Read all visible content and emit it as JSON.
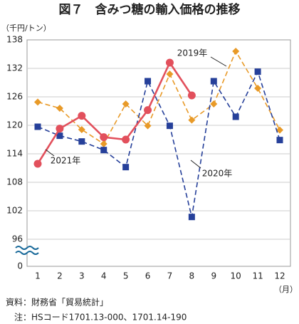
{
  "chart_data": {
    "type": "line",
    "title": "図７　含みつ糖の輸入価格の推移",
    "y_unit": "（千円/トン）",
    "x_unit": "（月）",
    "categories": [
      "1",
      "2",
      "3",
      "4",
      "5",
      "6",
      "7",
      "8",
      "9",
      "10",
      "11",
      "12"
    ],
    "series": [
      {
        "name": "2019年",
        "color": "#e89a28",
        "dash": true,
        "marker": "diamond",
        "values": [
          124.9,
          123.6,
          119.1,
          116.1,
          124.5,
          119.9,
          130.8,
          121.1,
          124.5,
          135.6,
          127.8,
          119.0
        ]
      },
      {
        "name": "2020年",
        "color": "#26409a",
        "dash": true,
        "marker": "square",
        "values": [
          119.7,
          117.8,
          116.6,
          114.8,
          111.2,
          129.3,
          119.9,
          100.7,
          129.3,
          121.8,
          131.3,
          116.9
        ]
      },
      {
        "name": "2021年",
        "color": "#e2505c",
        "dash": false,
        "marker": "circle",
        "values": [
          111.9,
          119.3,
          122.0,
          117.5,
          117.0,
          123.2,
          133.2,
          126.3,
          null,
          null,
          null,
          null
        ]
      }
    ],
    "ylim": [
      0,
      138
    ],
    "y_break": [
      0,
      96
    ],
    "yticks": [
      0,
      96,
      102,
      108,
      114,
      120,
      126,
      132,
      138
    ],
    "grid": true,
    "notes": [
      "資料：財務省「貿易統計」",
      "注：HSコード1701.13-000、1701.14-190"
    ]
  }
}
